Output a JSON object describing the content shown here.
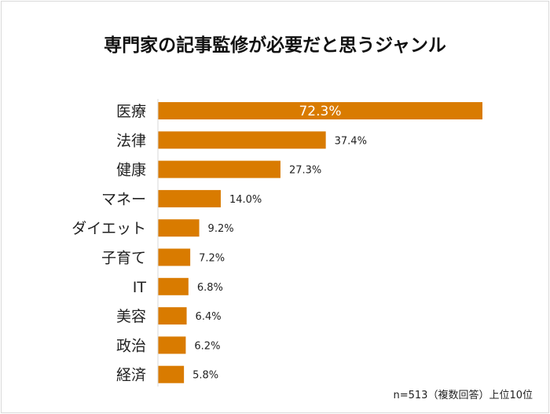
{
  "chart_data": {
    "type": "bar",
    "orientation": "horizontal",
    "title": "専門家の記事監修が必要だと思うジャンル",
    "categories": [
      "医療",
      "法律",
      "健康",
      "マネー",
      "ダイエット",
      "子育て",
      "IT",
      "美容",
      "政治",
      "経済"
    ],
    "values": [
      72.3,
      37.4,
      27.3,
      14.0,
      9.2,
      7.2,
      6.8,
      6.4,
      6.2,
      5.8
    ],
    "data_labels": [
      "72.3%",
      "37.4%",
      "27.3%",
      "14.0%",
      "9.2%",
      "7.2%",
      "6.8%",
      "6.4%",
      "6.2%",
      "5.8%"
    ],
    "xlim": [
      0,
      72.3
    ],
    "grid": false,
    "bar_color": "#d97b00",
    "note": "n=513（複数回答）上位10位"
  }
}
